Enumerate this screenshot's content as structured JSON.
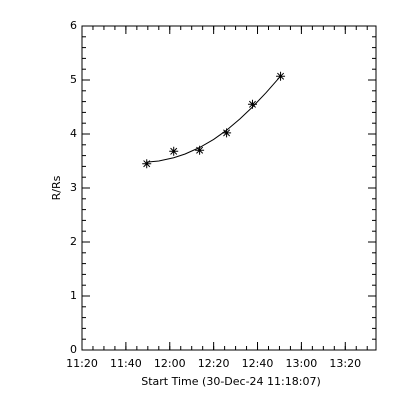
{
  "chart_data": {
    "type": "scatter",
    "xlabel": "Start Time (30-Dec-24 11:18:07)",
    "ylabel": "R/Rs",
    "xlim": [
      680,
      814
    ],
    "xticks": [
      {
        "value": 680,
        "label": "11:20"
      },
      {
        "value": 700,
        "label": "11:40"
      },
      {
        "value": 720,
        "label": "12:00"
      },
      {
        "value": 740,
        "label": "12:20"
      },
      {
        "value": 760,
        "label": "12:40"
      },
      {
        "value": 780,
        "label": "13:00"
      },
      {
        "value": 800,
        "label": "13:20"
      }
    ],
    "ylim": [
      0,
      6
    ],
    "yticks": [
      0,
      1,
      2,
      3,
      4,
      5,
      6
    ],
    "color": "#000000",
    "series": [
      {
        "type": "scatter",
        "marker": "asterisk",
        "x": [
          709.5,
          721.8,
          733.6,
          745.9,
          757.7,
          770.5
        ],
        "values": [
          3.45,
          3.68,
          3.7,
          4.02,
          4.55,
          5.07
        ]
      },
      {
        "type": "line",
        "x": [
          709.5,
          715,
          721.8,
          727,
          733.6,
          740,
          745.9,
          752,
          757.7,
          764,
          770.5
        ],
        "values": [
          3.48,
          3.5,
          3.56,
          3.63,
          3.75,
          3.9,
          4.07,
          4.28,
          4.5,
          4.77,
          5.07
        ]
      }
    ]
  }
}
